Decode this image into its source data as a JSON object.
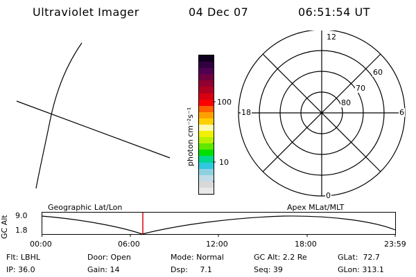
{
  "header": {
    "title": "Ultraviolet Imager",
    "date": "04 Dec 07",
    "time": "06:51:54 UT"
  },
  "colorbar": {
    "unit_label": "photon cm⁻²s⁻¹",
    "tick_labels": [
      "100",
      "10"
    ],
    "colors": [
      "#e8e8e8",
      "#d8d8d8",
      "#c0dce6",
      "#8fd0e0",
      "#30c8e0",
      "#00d890",
      "#00e000",
      "#60e800",
      "#b8f000",
      "#f0f000",
      "#fff8b0",
      "#ffd000",
      "#ffa000",
      "#ff6000",
      "#ff0000",
      "#d80010",
      "#b00020",
      "#900030",
      "#700040",
      "#500050",
      "#300040",
      "#100020"
    ]
  },
  "polar": {
    "mlt_labels": {
      "top": "12",
      "bottom": "0",
      "left": "18",
      "right": "6"
    },
    "lat_labels": [
      "60",
      "70",
      "80"
    ]
  },
  "track": {
    "ylabel": "GC Alt",
    "ytick_labels": [
      "9.0",
      "1.8"
    ],
    "left_caption": "Geographic Lat/Lon",
    "right_caption": "Apex MLat/MLT",
    "xtick_labels": [
      "00:00",
      "06:00",
      "12:00",
      "18:00",
      "23:59"
    ],
    "marker_color": "#e00000"
  },
  "info": {
    "col1": [
      "Flt: LBHL",
      "IP: 36.0"
    ],
    "col2": [
      "Door: Open",
      "Gain: 14"
    ],
    "col3": [
      "Mode: Normal",
      "Dsp:     7.1"
    ],
    "col4": [
      "GC Alt: 2.2 Re",
      "Seq: 39"
    ],
    "col5": [
      "GLat:  72.7",
      "GLon: 313.1"
    ]
  }
}
